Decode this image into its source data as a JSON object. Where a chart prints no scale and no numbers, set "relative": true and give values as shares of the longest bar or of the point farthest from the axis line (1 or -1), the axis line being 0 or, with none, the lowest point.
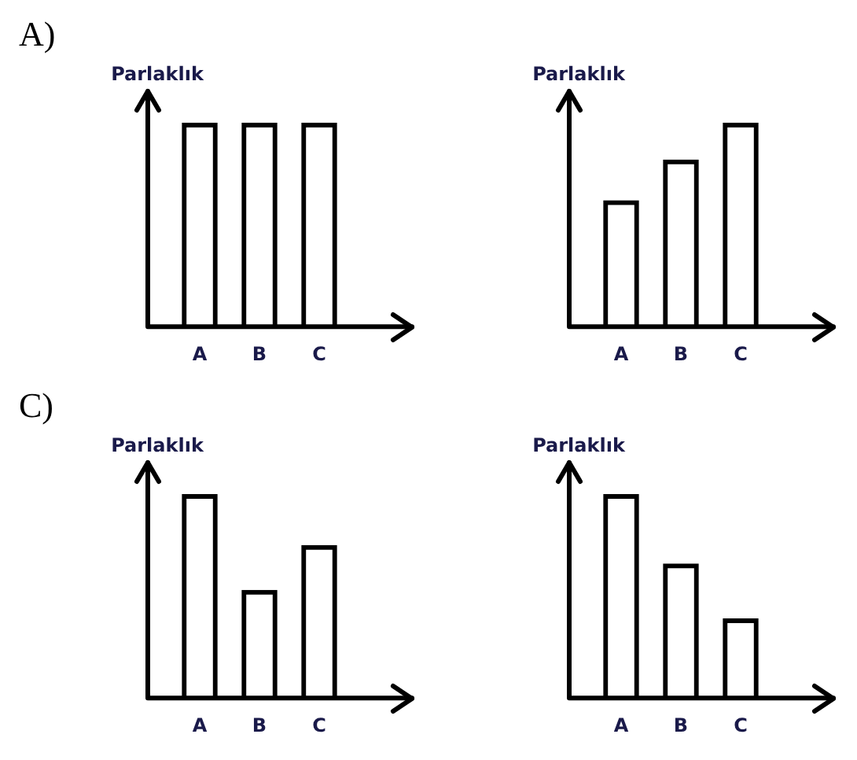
{
  "chart_data": [
    {
      "type": "bar",
      "ylabel": "Parlaklık",
      "annotations": [
        "A)"
      ],
      "relative": true,
      "categories": [
        "A",
        "B",
        "C"
      ],
      "values": [
        1,
        1,
        1
      ],
      "color": "#000000"
    },
    {
      "type": "bar",
      "ylabel": "Parlaklık",
      "relative": true,
      "categories": [
        "A",
        "B",
        "C"
      ],
      "values": [
        0.62,
        0.82,
        1
      ],
      "color": "#000000"
    },
    {
      "type": "bar",
      "ylabel": "Parlaklık",
      "annotations": [
        "C)"
      ],
      "relative": true,
      "categories": [
        "A",
        "B",
        "C"
      ],
      "values": [
        1,
        0.53,
        0.75
      ],
      "color": "#000000"
    },
    {
      "type": "bar",
      "ylabel": "Parlaklık",
      "relative": true,
      "categories": [
        "A",
        "B",
        "C"
      ],
      "values": [
        1,
        0.66,
        0.39
      ],
      "color": "#000000"
    }
  ]
}
